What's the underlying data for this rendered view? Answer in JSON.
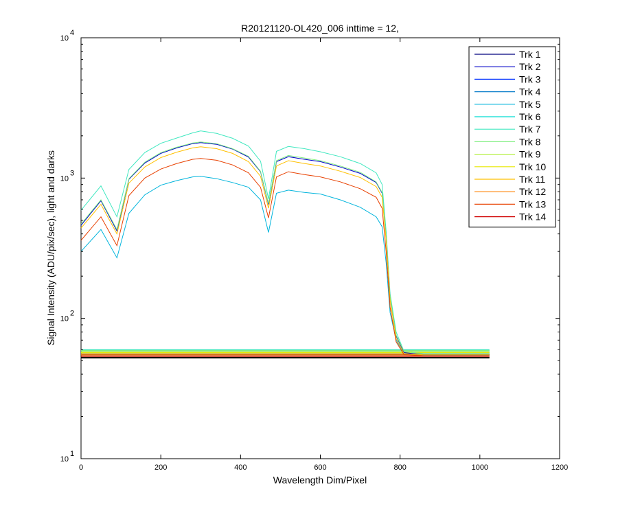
{
  "chart_data": {
    "type": "line",
    "title": "R20121120-OL420_006 inttime = 12,",
    "xlabel": "Wavelength Dim/Pixel",
    "ylabel": "Signal Intensity (ADU/pix/sec), light and darks",
    "xlim": [
      0,
      1200
    ],
    "ylim": [
      10,
      10000
    ],
    "yscale": "log",
    "x_ticks": [
      0,
      200,
      400,
      600,
      800,
      1000,
      1200
    ],
    "x_tick_labels": [
      "0",
      "200",
      "400",
      "600",
      "800",
      "1000",
      "1200"
    ],
    "y_ticks": [
      10,
      100,
      1000,
      10000
    ],
    "y_tick_labels": [
      {
        "base": "10",
        "exp": "1"
      },
      {
        "base": "10",
        "exp": "2"
      },
      {
        "base": "10",
        "exp": "3"
      },
      {
        "base": "10",
        "exp": "4"
      }
    ],
    "grid": false,
    "legend_position": "top-right",
    "legend": [
      "Trk 1",
      "Trk 2",
      "Trk 3",
      "Trk 4",
      "Trk 5",
      "Trk 6",
      "Trk 7",
      "Trk 8",
      "Trk 9",
      "Trk 10",
      "Trk 11",
      "Trk 12",
      "Trk 13",
      "Trk 14"
    ],
    "series_colors": [
      "#00007f",
      "#0000c8",
      "#0030ff",
      "#0078c8",
      "#00b4dc",
      "#00dcd2",
      "#40e8c0",
      "#80ee80",
      "#b4f040",
      "#e8e800",
      "#ffc000",
      "#ff8000",
      "#e84000",
      "#d00000"
    ],
    "x": [
      0,
      50,
      90,
      120,
      160,
      200,
      240,
      280,
      300,
      340,
      380,
      420,
      450,
      470,
      490,
      520,
      560,
      600,
      650,
      700,
      740,
      755,
      765,
      775,
      790,
      810,
      860,
      900,
      950,
      1000,
      1024
    ],
    "light_series": [
      {
        "name": "Trk 5",
        "values": [
          300,
          430,
          270,
          560,
          760,
          890,
          960,
          1020,
          1030,
          990,
          930,
          860,
          700,
          410,
          780,
          820,
          790,
          770,
          700,
          620,
          530,
          450,
          250,
          110,
          70,
          56,
          55,
          55,
          55,
          55,
          55
        ]
      },
      {
        "name": "Trk 7",
        "values": [
          590,
          880,
          530,
          1150,
          1520,
          1770,
          1930,
          2100,
          2170,
          2080,
          1920,
          1690,
          1320,
          710,
          1550,
          1680,
          1620,
          1540,
          1420,
          1270,
          1090,
          900,
          420,
          150,
          80,
          58,
          56,
          56,
          56,
          56,
          56
        ]
      },
      {
        "name": "Trk 2",
        "values": [
          460,
          690,
          420,
          980,
          1280,
          1500,
          1640,
          1760,
          1790,
          1740,
          1610,
          1410,
          1110,
          650,
          1310,
          1420,
          1360,
          1310,
          1200,
          1080,
          930,
          780,
          380,
          140,
          75,
          57,
          55,
          55,
          55,
          55,
          55
        ]
      },
      {
        "name": "Trk 8",
        "values": [
          470,
          700,
          430,
          990,
          1300,
          1520,
          1660,
          1780,
          1810,
          1760,
          1620,
          1430,
          1120,
          660,
          1330,
          1450,
          1390,
          1330,
          1220,
          1100,
          940,
          790,
          385,
          142,
          76,
          58,
          56,
          56,
          56,
          56,
          56
        ]
      },
      {
        "name": "Trk 11",
        "values": [
          440,
          650,
          400,
          920,
          1200,
          1400,
          1530,
          1640,
          1670,
          1620,
          1500,
          1310,
          1030,
          610,
          1220,
          1330,
          1270,
          1220,
          1120,
          1010,
          870,
          730,
          360,
          135,
          72,
          56,
          55,
          55,
          55,
          55,
          55
        ]
      },
      {
        "name": "Trk 13",
        "values": [
          360,
          530,
          330,
          750,
          1000,
          1160,
          1270,
          1360,
          1380,
          1340,
          1240,
          1090,
          860,
          520,
          1020,
          1110,
          1060,
          1020,
          940,
          840,
          730,
          610,
          300,
          120,
          68,
          55,
          54,
          54,
          54,
          54,
          54
        ]
      }
    ],
    "dark_levels": [
      55,
      55.5,
      56,
      57,
      58,
      59,
      60,
      59,
      58,
      57,
      56,
      55,
      54,
      53
    ]
  }
}
